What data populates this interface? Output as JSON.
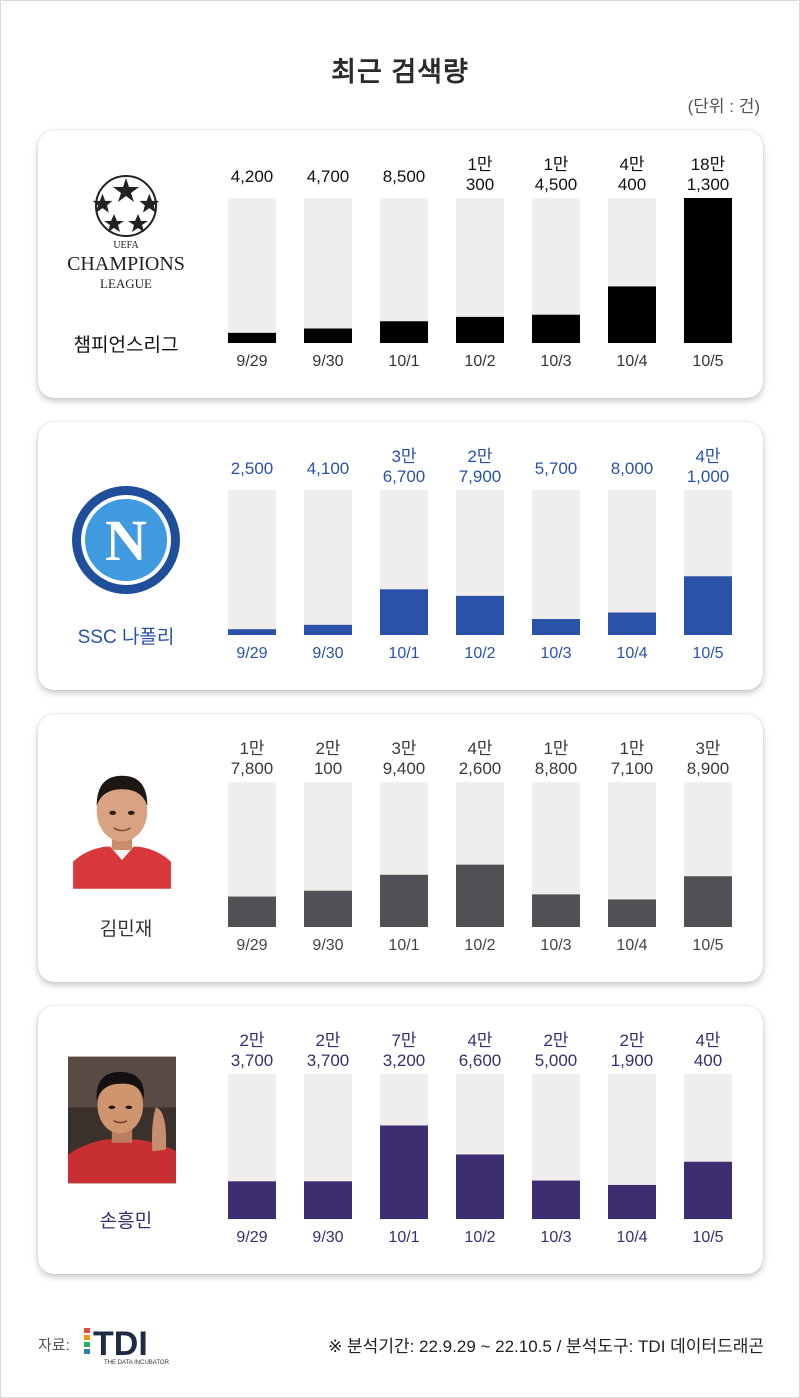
{
  "title": "최근 검색량",
  "unit": "(단위 : 건)",
  "colors": {
    "track": "#efeeed",
    "c1": "#000000",
    "c2": "#2a52a8",
    "c3": "#505055",
    "c4": "#3c2d70"
  },
  "chart_data": [
    {
      "type": "bar",
      "name": "챔피언스리그",
      "categories": [
        "9/29",
        "9/30",
        "10/1",
        "10/2",
        "10/3",
        "10/4",
        "10/5"
      ],
      "values": [
        4200,
        4700,
        8500,
        10300,
        14500,
        40400,
        181300
      ],
      "value_labels": [
        [
          "4,200"
        ],
        [
          "4,700"
        ],
        [
          "8,500"
        ],
        [
          "1만",
          "300"
        ],
        [
          "1만",
          "4,500"
        ],
        [
          "4만",
          "400"
        ],
        [
          "18만",
          "1,300"
        ]
      ],
      "fill_fractions": [
        0.07,
        0.1,
        0.15,
        0.18,
        0.195,
        0.39,
        1.0
      ],
      "color": "#000000",
      "label_color": "#111111",
      "tick_color": "#333333"
    },
    {
      "type": "bar",
      "name": "SSC 나폴리",
      "categories": [
        "9/29",
        "9/30",
        "10/1",
        "10/2",
        "10/3",
        "10/4",
        "10/5"
      ],
      "values": [
        2500,
        4100,
        36700,
        27900,
        5700,
        8000,
        41000
      ],
      "value_labels": [
        [
          "2,500"
        ],
        [
          "4,100"
        ],
        [
          "3만",
          "6,700"
        ],
        [
          "2만",
          "7,900"
        ],
        [
          "5,700"
        ],
        [
          "8,000"
        ],
        [
          "4만",
          "1,000"
        ]
      ],
      "fill_fractions": [
        0.04,
        0.07,
        0.315,
        0.27,
        0.11,
        0.155,
        0.405
      ],
      "color": "#2a52a8",
      "label_color": "#2a52a8",
      "tick_color": "#2a52a8"
    },
    {
      "type": "bar",
      "name": "김민재",
      "categories": [
        "9/29",
        "9/30",
        "10/1",
        "10/2",
        "10/3",
        "10/4",
        "10/5"
      ],
      "values": [
        17800,
        20100,
        39400,
        42600,
        18800,
        17100,
        38900
      ],
      "value_labels": [
        [
          "1만",
          "7,800"
        ],
        [
          "2만",
          "100"
        ],
        [
          "3만",
          "9,400"
        ],
        [
          "4만",
          "2,600"
        ],
        [
          "1만",
          "8,800"
        ],
        [
          "1만",
          "7,100"
        ],
        [
          "3만",
          "8,900"
        ]
      ],
      "fill_fractions": [
        0.21,
        0.25,
        0.36,
        0.43,
        0.225,
        0.19,
        0.35
      ],
      "color": "#505055",
      "label_color": "#3a3a3a",
      "tick_color": "#444444"
    },
    {
      "type": "bar",
      "name": "손흥민",
      "categories": [
        "9/29",
        "9/30",
        "10/1",
        "10/2",
        "10/3",
        "10/4",
        "10/5"
      ],
      "values": [
        23700,
        23700,
        73200,
        46600,
        25000,
        21900,
        40400
      ],
      "value_labels": [
        [
          "2만",
          "3,700"
        ],
        [
          "2만",
          "3,700"
        ],
        [
          "7만",
          "3,200"
        ],
        [
          "4만",
          "6,600"
        ],
        [
          "2만",
          "5,000"
        ],
        [
          "2만",
          "1,900"
        ],
        [
          "4만",
          "400"
        ]
      ],
      "fill_fractions": [
        0.26,
        0.26,
        0.645,
        0.445,
        0.265,
        0.235,
        0.395
      ],
      "color": "#3c2d70",
      "label_color": "#3c2d70",
      "tick_color": "#3c2d70"
    }
  ],
  "logos": {
    "ucl": {
      "top_text": "UEFA",
      "name": "CHAMPIONS",
      "sub": "LEAGUE"
    },
    "napoli": {
      "letter": "N"
    }
  },
  "footer": {
    "source_label": "자료:",
    "brand": "TDI",
    "brand_sub": "THE DATA INCUBATOR",
    "note": "※ 분석기간: 22.9.29 ~ 22.10.5 / 분석도구: TDI 데이터드래곤"
  }
}
